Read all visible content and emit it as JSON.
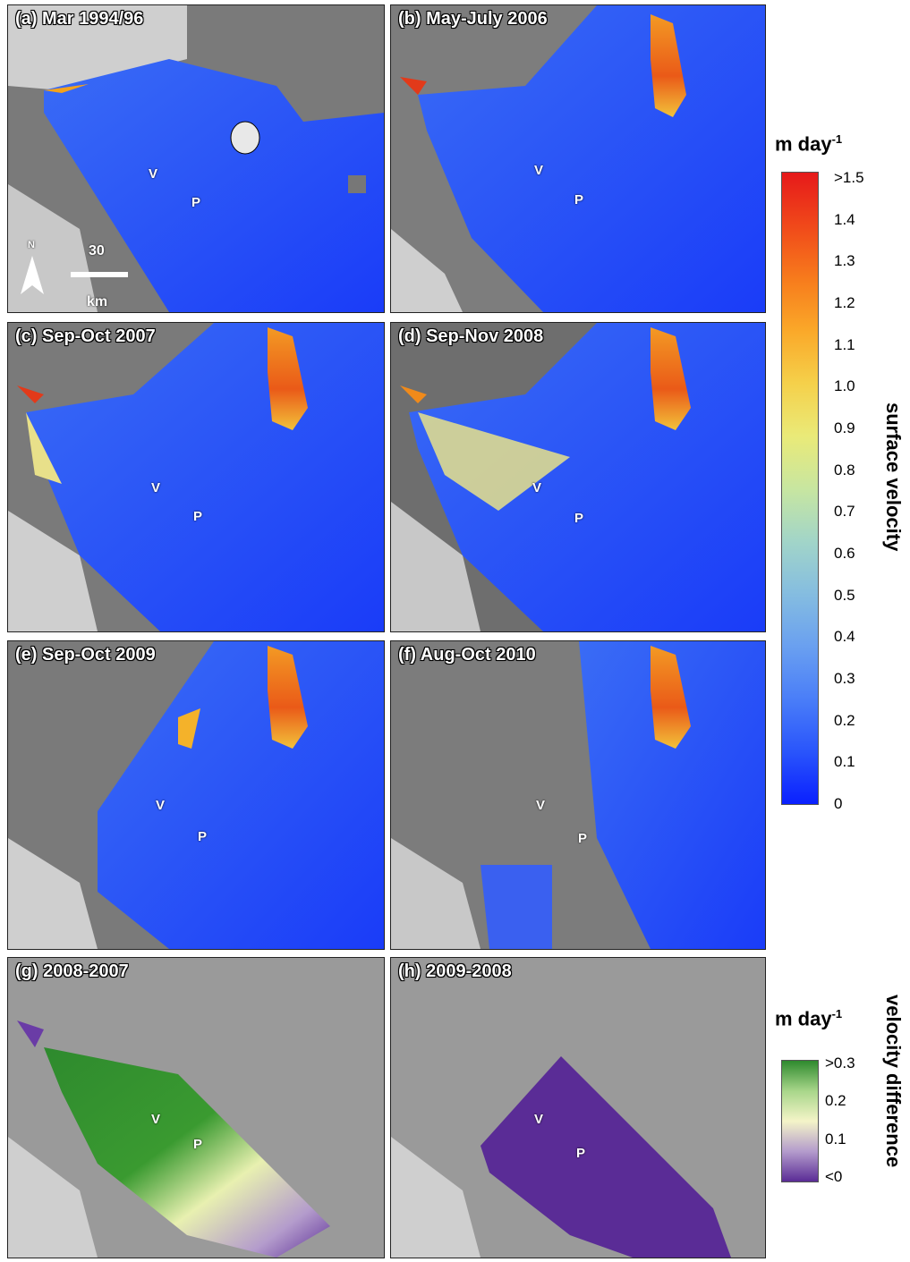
{
  "panels": [
    {
      "id": "a",
      "title": "(a) Mar 1994/96"
    },
    {
      "id": "b",
      "title": "(b) May-July 2006"
    },
    {
      "id": "c",
      "title": "(c) Sep-Oct 2007"
    },
    {
      "id": "d",
      "title": "(d) Sep-Nov 2008"
    },
    {
      "id": "e",
      "title": "(e) Sep-Oct 2009"
    },
    {
      "id": "f",
      "title": "(f) Aug-Oct 2010"
    },
    {
      "id": "g",
      "title": "(g) 2008-2007"
    },
    {
      "id": "h",
      "title": "(h) 2009-2008"
    }
  ],
  "point_labels": {
    "v": "V",
    "p": "P"
  },
  "scale_bar": {
    "north": "N",
    "distance": "30",
    "unit": "km"
  },
  "velocity_colorbar": {
    "unit_base": "m day",
    "unit_exp": "-1",
    "label": "surface velocity",
    "ticks": [
      ">1.5",
      "1.4",
      "1.3",
      "1.2",
      "1.1",
      "1.0",
      "0.9",
      "0.8",
      "0.7",
      "0.6",
      "0.5",
      "0.4",
      "0.3",
      "0.2",
      "0.1",
      "0"
    ],
    "colors": [
      "#e6191a",
      "#f0481a",
      "#f77a1c",
      "#faa829",
      "#f5d04a",
      "#eaea78",
      "#c8e6a0",
      "#a2d5c8",
      "#85bde0",
      "#6aa0f0",
      "#4a7ef8",
      "#2a55fb",
      "#0a20ff"
    ]
  },
  "difference_colorbar": {
    "unit_base": "m day",
    "unit_exp": "-1",
    "label": "velocity difference",
    "ticks": [
      ">0.3",
      "0.2",
      "0.1",
      "<0"
    ],
    "colors": [
      "#2e8a2e",
      "#a8d68a",
      "#f4f4c8",
      "#b49ccc",
      "#5a2c96"
    ]
  }
}
